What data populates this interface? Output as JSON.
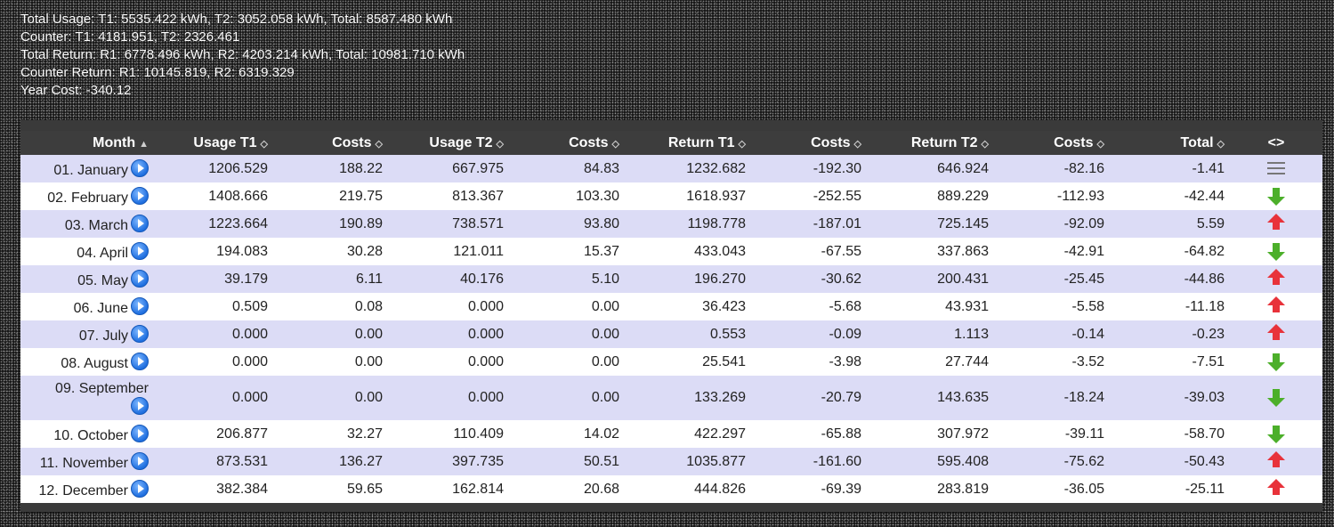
{
  "summary": {
    "line1": "Total Usage: T1: 5535.422 kWh, T2: 3052.058 kWh, Total: 8587.480 kWh",
    "line2": "Counter: T1: 4181.951, T2: 2326.461",
    "line3": "Total Return: R1: 6778.496 kWh, R2: 4203.214 kWh, Total: 10981.710 kWh",
    "line4": "Counter Return: R1: 10145.819, R2: 6319.329",
    "line5": "Year Cost: -340.12"
  },
  "table": {
    "headers": [
      "Month",
      "Usage T1",
      "Costs",
      "Usage T2",
      "Costs",
      "Return T1",
      "Costs",
      "Return T2",
      "Costs",
      "Total",
      "<>"
    ],
    "sort_icons": [
      "▲",
      "◇",
      "◇",
      "◇",
      "◇",
      "◇",
      "◇",
      "◇",
      "◇",
      "◇"
    ],
    "rows": [
      {
        "month": "01. January",
        "cells": [
          "1206.529",
          "188.22",
          "667.975",
          "84.83",
          "1232.682",
          "-192.30",
          "646.924",
          "-82.16",
          "-1.41"
        ],
        "trend": "list-icon"
      },
      {
        "month": "02. February",
        "cells": [
          "1408.666",
          "219.75",
          "813.367",
          "103.30",
          "1618.937",
          "-252.55",
          "889.229",
          "-112.93",
          "-42.44"
        ],
        "trend": "arrow-down-green-icon"
      },
      {
        "month": "03. March",
        "cells": [
          "1223.664",
          "190.89",
          "738.571",
          "93.80",
          "1198.778",
          "-187.01",
          "725.145",
          "-92.09",
          "5.59"
        ],
        "trend": "arrow-up-red-icon"
      },
      {
        "month": "04. April",
        "cells": [
          "194.083",
          "30.28",
          "121.011",
          "15.37",
          "433.043",
          "-67.55",
          "337.863",
          "-42.91",
          "-64.82"
        ],
        "trend": "arrow-down-green-icon"
      },
      {
        "month": "05. May",
        "cells": [
          "39.179",
          "6.11",
          "40.176",
          "5.10",
          "196.270",
          "-30.62",
          "200.431",
          "-25.45",
          "-44.86"
        ],
        "trend": "arrow-up-red-icon"
      },
      {
        "month": "06. June",
        "cells": [
          "0.509",
          "0.08",
          "0.000",
          "0.00",
          "36.423",
          "-5.68",
          "43.931",
          "-5.58",
          "-11.18"
        ],
        "trend": "arrow-up-red-icon"
      },
      {
        "month": "07. July",
        "cells": [
          "0.000",
          "0.00",
          "0.000",
          "0.00",
          "0.553",
          "-0.09",
          "1.113",
          "-0.14",
          "-0.23"
        ],
        "trend": "arrow-up-red-icon"
      },
      {
        "month": "08. August",
        "cells": [
          "0.000",
          "0.00",
          "0.000",
          "0.00",
          "25.541",
          "-3.98",
          "27.744",
          "-3.52",
          "-7.51"
        ],
        "trend": "arrow-down-green-icon"
      },
      {
        "month": "09. September",
        "cells": [
          "0.000",
          "0.00",
          "0.000",
          "0.00",
          "133.269",
          "-20.79",
          "143.635",
          "-18.24",
          "-39.03"
        ],
        "trend": "arrow-down-green-icon"
      },
      {
        "month": "10. October",
        "cells": [
          "206.877",
          "32.27",
          "110.409",
          "14.02",
          "422.297",
          "-65.88",
          "307.972",
          "-39.11",
          "-58.70"
        ],
        "trend": "arrow-down-green-icon"
      },
      {
        "month": "11. November",
        "cells": [
          "873.531",
          "136.27",
          "397.735",
          "50.51",
          "1035.877",
          "-161.60",
          "595.408",
          "-75.62",
          "-50.43"
        ],
        "trend": "arrow-up-red-icon"
      },
      {
        "month": "12. December",
        "cells": [
          "382.384",
          "59.65",
          "162.814",
          "20.68",
          "444.826",
          "-69.39",
          "283.819",
          "-36.05",
          "-25.11"
        ],
        "trend": "arrow-up-red-icon"
      }
    ]
  }
}
